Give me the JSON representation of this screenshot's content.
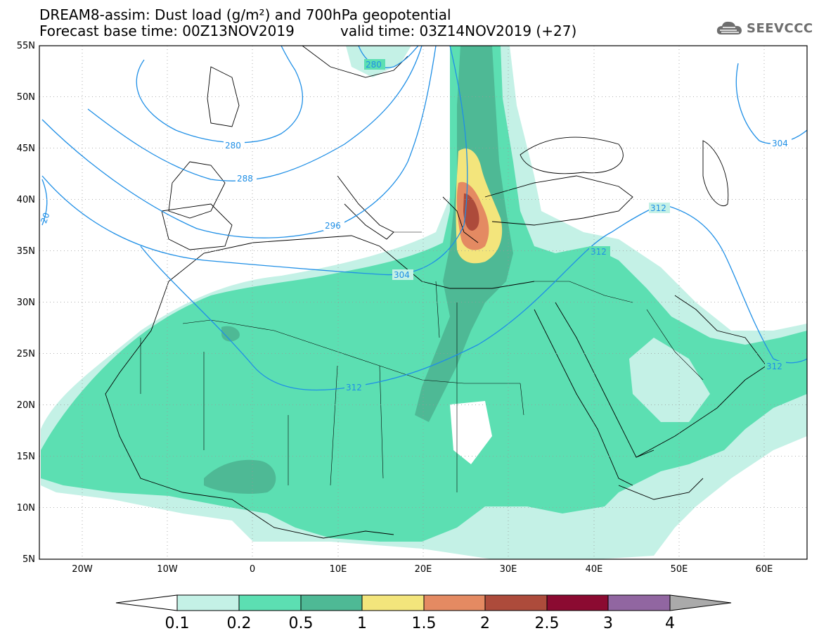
{
  "title": {
    "line1": "DREAM8-assim: Dust load (g/m²) and 700hPa geopotential",
    "line2": "Forecast base time: 00Z13NOV2019",
    "valid": "valid time: 03Z14NOV2019 (+27)"
  },
  "logo": {
    "text": "SEEVCCC",
    "icon": "cloud-icon"
  },
  "axes": {
    "lat_labels": [
      "55N",
      "50N",
      "45N",
      "40N",
      "35N",
      "30N",
      "25N",
      "20N",
      "15N",
      "10N",
      "5N"
    ],
    "lon_labels": [
      "20W",
      "10W",
      "0",
      "10E",
      "20E",
      "30E",
      "40E",
      "50E",
      "60E"
    ],
    "lon_range": [
      -25,
      65
    ],
    "lat_range": [
      5,
      55
    ]
  },
  "colorbar": {
    "labels": [
      "0.1",
      "0.2",
      "0.5",
      "1",
      "1.5",
      "2",
      "2.5",
      "3",
      "4"
    ],
    "colors": [
      "#c4f1e6",
      "#5cdfb2",
      "#4eb995",
      "#f3e57c",
      "#e48a62",
      "#ad4b3b",
      "#8b0a31",
      "#9166a1"
    ],
    "low_color": "#ffffff",
    "high_color": "#aaaaaa"
  },
  "contour_labels": [
    "280",
    "280",
    "288",
    "296",
    "304",
    "304",
    "312",
    "312",
    "312",
    "312",
    "20"
  ],
  "colors": {
    "contour": "#1f8fe6",
    "border": "#000000"
  }
}
